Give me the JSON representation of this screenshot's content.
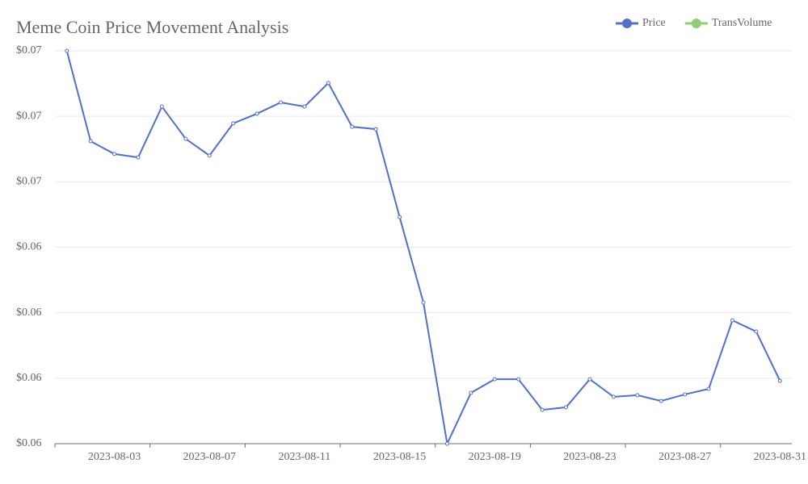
{
  "chart_data": {
    "type": "line",
    "title": "Meme Coin Price Movement Analysis",
    "categories": [
      null,
      null,
      "2023-08-03",
      null,
      null,
      null,
      "2023-08-07",
      null,
      null,
      null,
      "2023-08-11",
      null,
      null,
      null,
      "2023-08-15",
      null,
      null,
      null,
      "2023-08-19",
      null,
      null,
      null,
      "2023-08-23",
      null,
      null,
      null,
      "2023-08-27",
      null,
      null,
      null,
      "2023-08-31"
    ],
    "series": [
      {
        "name": "Price",
        "color": "#5470c6",
        "values": [
          0.0715,
          0.06805,
          0.06756,
          0.06743,
          0.06937,
          0.06814,
          0.0675,
          0.06873,
          0.0691,
          0.06953,
          0.06937,
          0.07027,
          0.0686,
          0.06851,
          0.06515,
          0.06189,
          0.0565,
          0.05844,
          0.05896,
          0.05896,
          0.05779,
          0.05789,
          0.05896,
          0.05829,
          0.05835,
          0.05813,
          0.05838,
          0.05859,
          0.06121,
          0.06078,
          0.0589
        ]
      },
      {
        "name": "TransVolume",
        "color": "#91cc75",
        "values": [
          null,
          null,
          null,
          null,
          null,
          null,
          null,
          null,
          null,
          null,
          null,
          null,
          null,
          null,
          null,
          null,
          null,
          null,
          null,
          null,
          null,
          null,
          null,
          null,
          null,
          null,
          null,
          null,
          null,
          null,
          null
        ]
      }
    ],
    "ylim": [
      0.0565,
      0.0715
    ],
    "yticks": [
      {
        "value": 0.0565,
        "label": "$0.06"
      },
      {
        "value": 0.059,
        "label": "$0.06"
      },
      {
        "value": 0.0615,
        "label": "$0.06"
      },
      {
        "value": 0.064,
        "label": "$0.06"
      },
      {
        "value": 0.0665,
        "label": "$0.07"
      },
      {
        "value": 0.069,
        "label": "$0.07"
      },
      {
        "value": 0.0715,
        "label": "$0.07"
      }
    ],
    "grid": true,
    "legend": "top-right"
  }
}
